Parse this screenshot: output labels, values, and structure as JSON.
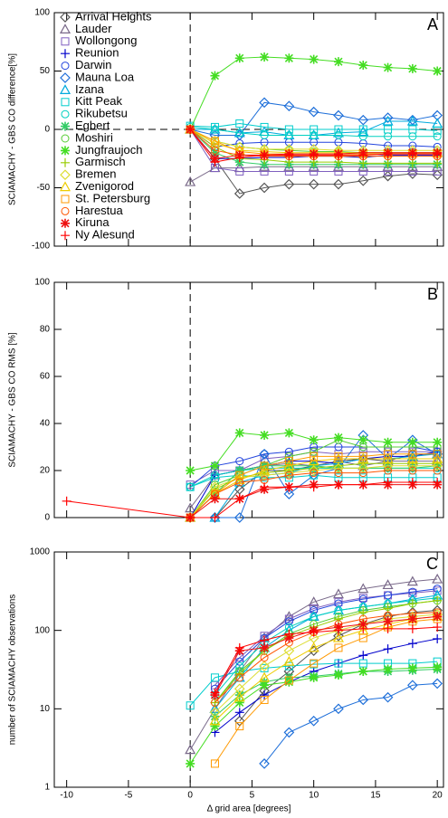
{
  "chart_data": [
    {
      "type": "line",
      "label": "A",
      "ylabel": "SCIAMACHY - GBS CO difference[%]",
      "legend": "upper left",
      "xlim": [
        -11,
        20.5
      ],
      "ylim": [
        -100,
        100
      ],
      "yticks": [
        -100,
        -50,
        0,
        50,
        100
      ],
      "vline": 0,
      "hline": 0,
      "x": [
        0,
        2,
        4,
        6,
        8,
        10,
        12,
        14,
        16,
        18,
        20
      ],
      "series": [
        {
          "name": "Arrival Heights",
          "color": "#555555",
          "marker": "diamond",
          "values": [
            0,
            -25,
            -55,
            -50,
            -47,
            -47,
            -47,
            -44,
            -40,
            -38,
            -39
          ]
        },
        {
          "name": "Lauder",
          "color": "#7a6a8a",
          "marker": "triangle",
          "values": [
            -45,
            -33,
            -33,
            -32,
            -32,
            -32,
            -32,
            -32,
            -32,
            -32,
            -32
          ]
        },
        {
          "name": "Wollongong",
          "color": "#7f5fbf",
          "marker": "square",
          "values": [
            0,
            -33,
            -36,
            -36,
            -36,
            -36,
            -36,
            -36,
            -36,
            -36,
            -36
          ]
        },
        {
          "name": "Reunion",
          "color": "#0000cc",
          "marker": "plus",
          "values": [
            0,
            -25,
            -25,
            -24,
            -24,
            -23,
            -23,
            -24,
            -22,
            -22,
            -22
          ]
        },
        {
          "name": "Darwin",
          "color": "#2244dd",
          "marker": "circle",
          "values": [
            0,
            -15,
            -12,
            -11,
            -11,
            -11,
            -11,
            -12,
            -14,
            -14,
            -15
          ]
        },
        {
          "name": "Mauna Loa",
          "color": "#1e6fd9",
          "marker": "diamond",
          "values": [
            0,
            -5,
            -5,
            23,
            20,
            15,
            12,
            8,
            10,
            8,
            12
          ]
        },
        {
          "name": "Izana",
          "color": "#00aadd",
          "marker": "triangle",
          "values": [
            0,
            0,
            -3,
            -2,
            -5,
            -5,
            -3,
            -2,
            7,
            7,
            5
          ]
        },
        {
          "name": "Kitt Peak",
          "color": "#00cccc",
          "marker": "square",
          "values": [
            3,
            2,
            5,
            2,
            0,
            0,
            0,
            0,
            0,
            0,
            -1
          ]
        },
        {
          "name": "Rikubetsu",
          "color": "#00d0c0",
          "marker": "circle",
          "values": [
            2,
            0,
            -3,
            -5,
            -5,
            -5,
            -5,
            -6,
            -6,
            -6,
            -6
          ]
        },
        {
          "name": "Egbert",
          "color": "#33cc66",
          "marker": "asterisk",
          "values": [
            0,
            -20,
            -28,
            -30,
            -30,
            -30,
            -30,
            -30,
            -30,
            -30,
            -30
          ]
        },
        {
          "name": "Moshiri",
          "color": "#55cc33",
          "marker": "circle",
          "values": [
            0,
            -10,
            -15,
            -17,
            -18,
            -19,
            -19,
            -20,
            -20,
            -20,
            -20
          ]
        },
        {
          "name": "Jungfraujoch",
          "color": "#44dd22",
          "marker": "asterisk",
          "values": [
            0,
            46,
            61,
            62,
            61,
            60,
            58,
            55,
            53,
            52,
            50
          ]
        },
        {
          "name": "Garmisch",
          "color": "#99cc00",
          "marker": "plus",
          "values": [
            0,
            -15,
            -25,
            -26,
            -28,
            -28,
            -28,
            -29,
            -29,
            -29,
            -29
          ]
        },
        {
          "name": "Bremen",
          "color": "#dddd33",
          "marker": "diamond",
          "values": [
            0,
            -10,
            -15,
            -17,
            -17,
            -17,
            -18,
            -18,
            -18,
            -18,
            -18
          ]
        },
        {
          "name": "Zvenigorod",
          "color": "#eecc00",
          "marker": "triangle",
          "values": [
            0,
            -12,
            -18,
            -19,
            -20,
            -20,
            -20,
            -20,
            -20,
            -20,
            -20
          ]
        },
        {
          "name": "St. Petersburg",
          "color": "#ff9900",
          "marker": "square",
          "values": [
            0,
            -10,
            -19,
            -21,
            -21,
            -21,
            -21,
            -21,
            -21,
            -21,
            -21
          ]
        },
        {
          "name": "Harestua",
          "color": "#ff5500",
          "marker": "circle",
          "values": [
            0,
            -18,
            -22,
            -23,
            -23,
            -23,
            -23,
            -23,
            -23,
            -23,
            -23
          ]
        },
        {
          "name": "Kiruna",
          "color": "#ee1111",
          "marker": "asterisk",
          "values": [
            0,
            -25,
            -22,
            -22,
            -21,
            -21,
            -21,
            -20,
            -20,
            -20,
            -20
          ]
        },
        {
          "name": "Ny Alesund",
          "color": "#ff0000",
          "marker": "plus",
          "values": [
            0,
            -28,
            -24,
            -22,
            -22,
            -22,
            -22,
            -22,
            -21,
            -21,
            -21
          ]
        }
      ]
    },
    {
      "type": "line",
      "label": "B",
      "ylabel": "SCIAMACHY - GBS CO RMS [%]",
      "xlim": [
        -11,
        20.5
      ],
      "ylim": [
        0,
        100
      ],
      "yticks": [
        0,
        20,
        40,
        60,
        80,
        100
      ],
      "vline": 0,
      "x": [
        -10,
        0,
        2,
        4,
        6,
        8,
        10,
        12,
        14,
        16,
        18,
        20
      ],
      "series": [
        {
          "color": "#555555",
          "marker": "diamond",
          "values": [
            null,
            0,
            0,
            12,
            20,
            20,
            22,
            24,
            25,
            24,
            27,
            27
          ]
        },
        {
          "color": "#7a6a8a",
          "marker": "triangle",
          "values": [
            null,
            4,
            18,
            20,
            22,
            23,
            22,
            24,
            22,
            24,
            24,
            24
          ]
        },
        {
          "color": "#7f5fbf",
          "marker": "square",
          "values": [
            null,
            14,
            20,
            20,
            25,
            26,
            28,
            27,
            28,
            28,
            28,
            28
          ]
        },
        {
          "color": "#0000cc",
          "marker": "plus",
          "values": [
            null,
            0,
            18,
            20,
            22,
            24,
            24,
            23,
            25,
            26,
            26,
            28
          ]
        },
        {
          "color": "#2244dd",
          "marker": "circle",
          "values": [
            null,
            13,
            22,
            24,
            27,
            28,
            30,
            30,
            30,
            30,
            30,
            28
          ]
        },
        {
          "color": "#1e6fd9",
          "marker": "diamond",
          "values": [
            null,
            0,
            0,
            0,
            27,
            10,
            18,
            21,
            35,
            25,
            33,
            27
          ]
        },
        {
          "color": "#00aadd",
          "marker": "triangle",
          "values": [
            null,
            0,
            0,
            15,
            18,
            19,
            22,
            23,
            25,
            25,
            26,
            27
          ]
        },
        {
          "color": "#00cccc",
          "marker": "square",
          "values": [
            null,
            13,
            17,
            18,
            17,
            17,
            18,
            17,
            17,
            17,
            17,
            17
          ]
        },
        {
          "color": "#00d0c0",
          "marker": "circle",
          "values": [
            null,
            13,
            18,
            20,
            21,
            21,
            21,
            21,
            21,
            21,
            21,
            21
          ]
        },
        {
          "color": "#33cc66",
          "marker": "asterisk",
          "values": [
            null,
            0,
            10,
            20,
            22,
            22,
            22,
            21,
            21,
            21,
            21,
            22
          ]
        },
        {
          "color": "#55cc33",
          "marker": "circle",
          "values": [
            null,
            0,
            14,
            18,
            22,
            26,
            28,
            33,
            30,
            30,
            30,
            30
          ]
        },
        {
          "color": "#44dd22",
          "marker": "asterisk",
          "values": [
            null,
            20,
            22,
            36,
            35,
            36,
            33,
            34,
            33,
            32,
            32,
            32
          ]
        },
        {
          "color": "#99cc00",
          "marker": "plus",
          "values": [
            null,
            0,
            12,
            17,
            19,
            20,
            21,
            22,
            23,
            23,
            23,
            23
          ]
        },
        {
          "color": "#dddd33",
          "marker": "diamond",
          "values": [
            null,
            0,
            13,
            17,
            18,
            19,
            20,
            21,
            21,
            22,
            22,
            22
          ]
        },
        {
          "color": "#eecc00",
          "marker": "triangle",
          "values": [
            null,
            0,
            10,
            16,
            20,
            22,
            24,
            25,
            25,
            25,
            25,
            25
          ]
        },
        {
          "color": "#ff9900",
          "marker": "square",
          "values": [
            null,
            0,
            10,
            18,
            22,
            24,
            26,
            26,
            26,
            27,
            27,
            27
          ]
        },
        {
          "color": "#ff5500",
          "marker": "circle",
          "values": [
            null,
            0,
            10,
            15,
            16,
            18,
            19,
            19,
            19,
            20,
            20,
            20
          ]
        },
        {
          "color": "#ee1111",
          "marker": "asterisk",
          "values": [
            null,
            0,
            8,
            8,
            12,
            13,
            14,
            14,
            14,
            14,
            14,
            14
          ]
        },
        {
          "color": "#ff0000",
          "marker": "plus",
          "values": [
            7,
            0,
            0,
            8,
            13,
            13,
            13,
            14,
            14,
            15,
            15,
            15
          ]
        }
      ]
    },
    {
      "type": "line",
      "label": "C",
      "ylabel": "number of SCIAMACHY observations",
      "xlabel": "Δ grid area [degrees]",
      "log": true,
      "xlim": [
        -11,
        20.5
      ],
      "xticks": [
        -10,
        -5,
        0,
        5,
        10,
        15,
        20
      ],
      "ylim": [
        1,
        1000
      ],
      "yticks": [
        1,
        10,
        100,
        1000
      ],
      "vline": 0,
      "x": [
        0,
        2,
        4,
        6,
        8,
        10,
        12,
        14,
        16,
        18,
        20
      ],
      "series": [
        {
          "color": "#555555",
          "marker": "diamond",
          "values": [
            null,
            null,
            7,
            17,
            30,
            55,
            85,
            120,
            150,
            170,
            180
          ]
        },
        {
          "color": "#7a6a8a",
          "marker": "triangle",
          "values": [
            3,
            10,
            30,
            80,
            150,
            230,
            290,
            340,
            380,
            420,
            450
          ]
        },
        {
          "color": "#7f5fbf",
          "marker": "square",
          "values": [
            null,
            20,
            45,
            85,
            140,
            190,
            230,
            260,
            280,
            300,
            320
          ]
        },
        {
          "color": "#0000cc",
          "marker": "plus",
          "values": [
            null,
            5,
            9,
            15,
            22,
            30,
            38,
            48,
            58,
            68,
            78
          ]
        },
        {
          "color": "#2244dd",
          "marker": "circle",
          "values": [
            null,
            18,
            40,
            80,
            130,
            180,
            220,
            250,
            280,
            310,
            340
          ]
        },
        {
          "color": "#1e6fd9",
          "marker": "diamond",
          "values": [
            null,
            null,
            null,
            2,
            5,
            7,
            10,
            13,
            14,
            20,
            21
          ]
        },
        {
          "color": "#00aadd",
          "marker": "triangle",
          "values": [
            null,
            10,
            25,
            60,
            100,
            150,
            180,
            200,
            220,
            250,
            280
          ]
        },
        {
          "color": "#00cccc",
          "marker": "square",
          "values": [
            11,
            25,
            30,
            33,
            35,
            37,
            38,
            38,
            38,
            38,
            40
          ]
        },
        {
          "color": "#00d0c0",
          "marker": "circle",
          "values": [
            null,
            15,
            35,
            70,
            110,
            150,
            180,
            200,
            220,
            240,
            260
          ]
        },
        {
          "color": "#33cc66",
          "marker": "asterisk",
          "values": [
            null,
            8,
            15,
            22,
            25,
            26,
            28,
            30,
            30,
            31,
            32
          ]
        },
        {
          "color": "#55cc33",
          "marker": "circle",
          "values": [
            null,
            12,
            30,
            55,
            90,
            120,
            150,
            180,
            200,
            220,
            240
          ]
        },
        {
          "color": "#44dd22",
          "marker": "asterisk",
          "values": [
            2,
            6,
            12,
            20,
            22,
            25,
            27,
            30,
            32,
            33,
            34
          ]
        },
        {
          "color": "#99cc00",
          "marker": "plus",
          "values": [
            null,
            12,
            28,
            55,
            85,
            110,
            140,
            170,
            190,
            220,
            240
          ]
        },
        {
          "color": "#dddd33",
          "marker": "diamond",
          "values": [
            null,
            9,
            18,
            35,
            55,
            80,
            100,
            120,
            140,
            150,
            160
          ]
        },
        {
          "color": "#eecc00",
          "marker": "triangle",
          "values": [
            null,
            7,
            14,
            25,
            40,
            60,
            80,
            100,
            120,
            140,
            150
          ]
        },
        {
          "color": "#ff9900",
          "marker": "square",
          "values": [
            null,
            2,
            6,
            13,
            23,
            38,
            60,
            80,
            110,
            130,
            140
          ]
        },
        {
          "color": "#ff5500",
          "marker": "circle",
          "values": [
            null,
            12,
            25,
            45,
            70,
            95,
            120,
            140,
            155,
            165,
            170
          ]
        },
        {
          "color": "#ee1111",
          "marker": "asterisk",
          "values": [
            null,
            15,
            55,
            60,
            80,
            100,
            110,
            120,
            130,
            140,
            150
          ]
        },
        {
          "color": "#ff0000",
          "marker": "plus",
          "values": [
            null,
            16,
            60,
            75,
            90,
            95,
            100,
            105,
            105,
            105,
            110
          ]
        }
      ]
    }
  ]
}
